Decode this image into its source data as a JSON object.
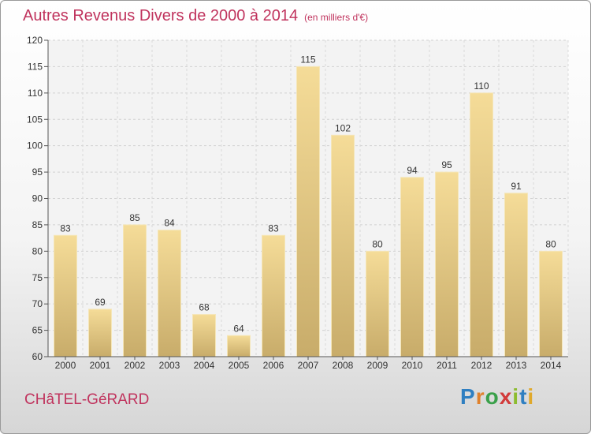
{
  "title": "Autres Revenus Divers de 2000 à 2014",
  "subtitle": "(en milliers d'€)",
  "place": "CHâTEL-GéRARD",
  "logo": "Proxiti",
  "chart_data": {
    "type": "bar",
    "title": "Autres Revenus Divers de 2000 à 2014",
    "subtitle": "(en milliers d'€)",
    "categories": [
      "2000",
      "2001",
      "2002",
      "2003",
      "2004",
      "2005",
      "2006",
      "2007",
      "2008",
      "2009",
      "2010",
      "2011",
      "2012",
      "2013",
      "2014"
    ],
    "values": [
      83,
      69,
      85,
      84,
      68,
      64,
      83,
      115,
      102,
      80,
      94,
      95,
      110,
      91,
      80
    ],
    "ylim": [
      60,
      120
    ],
    "yticks": [
      60,
      65,
      70,
      75,
      80,
      85,
      90,
      95,
      100,
      105,
      110,
      115,
      120
    ],
    "grid": true,
    "bar_color": "#e8cf8c",
    "accent_color": "#c0335d"
  }
}
